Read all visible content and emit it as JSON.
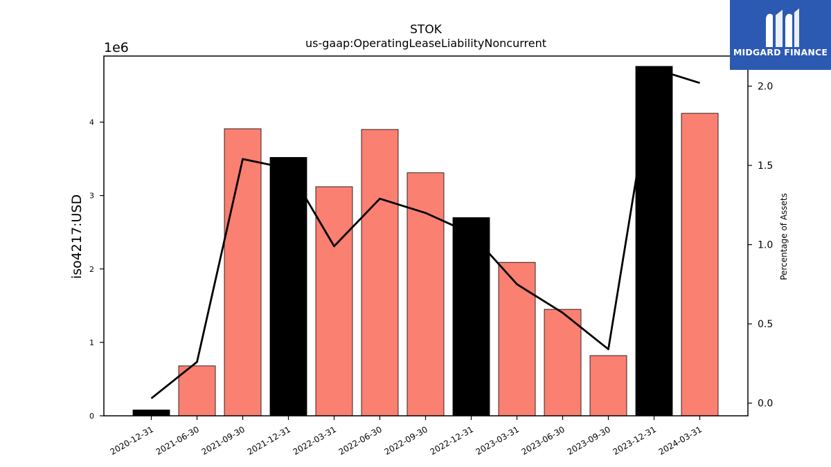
{
  "chart_data": {
    "type": "bar",
    "title": "STOK",
    "subtitle": "us-gaap:OperatingLeaseLiabilityNoncurrent",
    "ylabel": "iso4217:USD",
    "y_offset_label": "1e6",
    "y2label": "Percentage of Assets",
    "categories": [
      "2020-12-31",
      "2021-06-30",
      "2021-09-30",
      "2021-12-31",
      "2022-03-31",
      "2022-06-30",
      "2022-09-30",
      "2022-12-31",
      "2023-03-31",
      "2023-06-30",
      "2023-09-30",
      "2023-12-31",
      "2024-03-31"
    ],
    "series": [
      {
        "type": "bar",
        "axis": "left",
        "values": [
          80000,
          680000,
          3910000,
          3520000,
          3120000,
          3900000,
          3310000,
          2700000,
          2090000,
          1450000,
          820000,
          4760000,
          4120000
        ],
        "colors": [
          "#000000",
          "#fa8072",
          "#fa8072",
          "#000000",
          "#fa8072",
          "#fa8072",
          "#fa8072",
          "#000000",
          "#fa8072",
          "#fa8072",
          "#fa8072",
          "#000000",
          "#fa8072"
        ]
      },
      {
        "type": "line",
        "axis": "right",
        "color": "#000000",
        "values": [
          0.03,
          0.26,
          1.54,
          1.48,
          0.99,
          1.29,
          1.2,
          1.07,
          0.75,
          0.57,
          0.34,
          2.11,
          2.02
        ]
      }
    ],
    "ylim": [
      0,
      4900000
    ],
    "y2lim": [
      -0.08,
      2.19
    ],
    "yticks": [
      0,
      1000000,
      2000000,
      3000000,
      4000000
    ],
    "ytick_labels": [
      "0",
      "1",
      "2",
      "3",
      "4"
    ],
    "y2ticks": [
      0.0,
      0.5,
      1.0,
      1.5,
      2.0
    ],
    "y2tick_labels": [
      "0.0",
      "0.5",
      "1.0",
      "1.5",
      "2.0"
    ],
    "grid": false,
    "legend": "none"
  },
  "logo": {
    "text": "MIDGARD FINANCE",
    "bg_color": "#2c5ab2"
  }
}
